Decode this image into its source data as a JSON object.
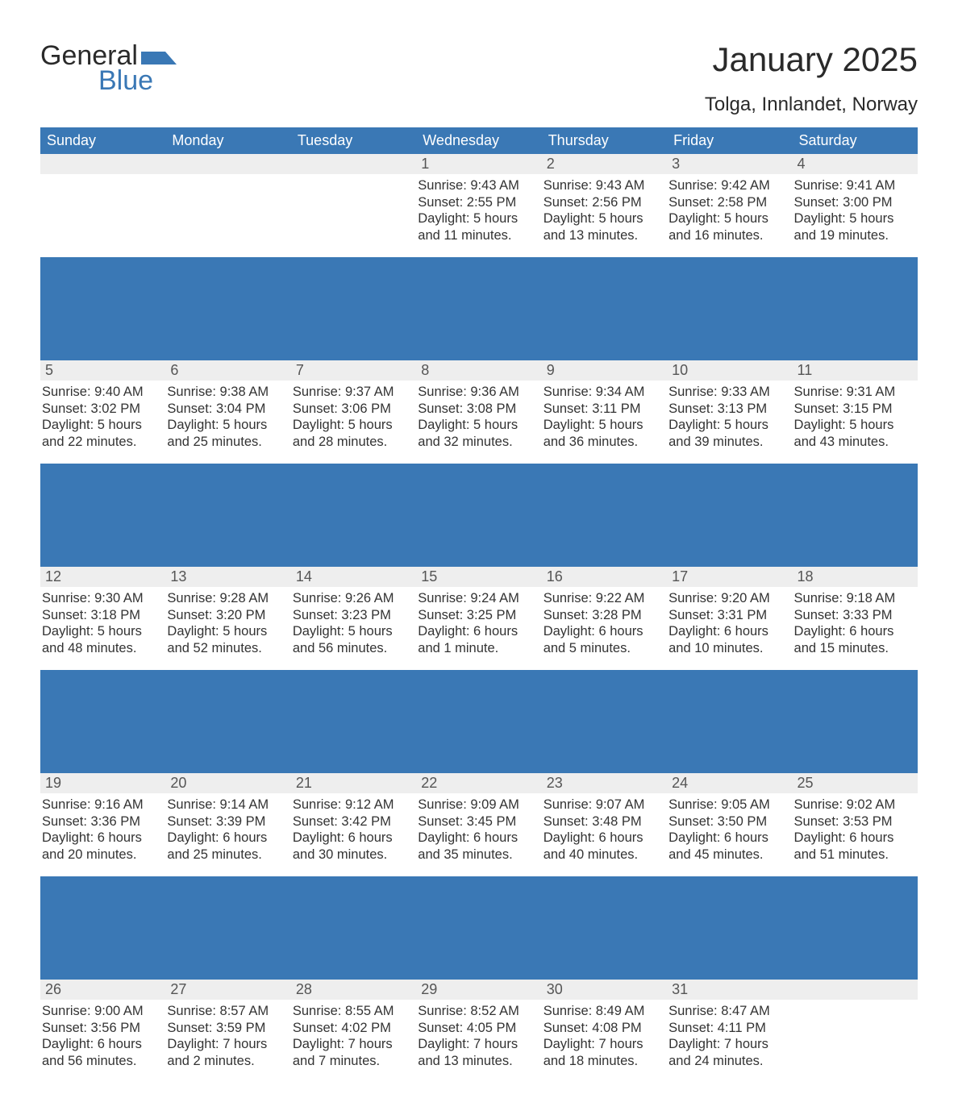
{
  "brand": {
    "word1": "General",
    "word2": "Blue"
  },
  "title": "January 2025",
  "location": "Tolga, Innlandet, Norway",
  "colors": {
    "header_bg": "#3a78b5",
    "header_fg": "#ffffff",
    "daynum_bg": "#eeeeee",
    "text": "#333333",
    "page_bg": "#ffffff",
    "logo_blue": "#3a78b5"
  },
  "day_headers": [
    "Sunday",
    "Monday",
    "Tuesday",
    "Wednesday",
    "Thursday",
    "Friday",
    "Saturday"
  ],
  "weeks": [
    [
      {
        "n": "",
        "sr": "",
        "ss": "",
        "dl1": "",
        "dl2": ""
      },
      {
        "n": "",
        "sr": "",
        "ss": "",
        "dl1": "",
        "dl2": ""
      },
      {
        "n": "",
        "sr": "",
        "ss": "",
        "dl1": "",
        "dl2": ""
      },
      {
        "n": "1",
        "sr": "Sunrise: 9:43 AM",
        "ss": "Sunset: 2:55 PM",
        "dl1": "Daylight: 5 hours",
        "dl2": "and 11 minutes."
      },
      {
        "n": "2",
        "sr": "Sunrise: 9:43 AM",
        "ss": "Sunset: 2:56 PM",
        "dl1": "Daylight: 5 hours",
        "dl2": "and 13 minutes."
      },
      {
        "n": "3",
        "sr": "Sunrise: 9:42 AM",
        "ss": "Sunset: 2:58 PM",
        "dl1": "Daylight: 5 hours",
        "dl2": "and 16 minutes."
      },
      {
        "n": "4",
        "sr": "Sunrise: 9:41 AM",
        "ss": "Sunset: 3:00 PM",
        "dl1": "Daylight: 5 hours",
        "dl2": "and 19 minutes."
      }
    ],
    [
      {
        "n": "5",
        "sr": "Sunrise: 9:40 AM",
        "ss": "Sunset: 3:02 PM",
        "dl1": "Daylight: 5 hours",
        "dl2": "and 22 minutes."
      },
      {
        "n": "6",
        "sr": "Sunrise: 9:38 AM",
        "ss": "Sunset: 3:04 PM",
        "dl1": "Daylight: 5 hours",
        "dl2": "and 25 minutes."
      },
      {
        "n": "7",
        "sr": "Sunrise: 9:37 AM",
        "ss": "Sunset: 3:06 PM",
        "dl1": "Daylight: 5 hours",
        "dl2": "and 28 minutes."
      },
      {
        "n": "8",
        "sr": "Sunrise: 9:36 AM",
        "ss": "Sunset: 3:08 PM",
        "dl1": "Daylight: 5 hours",
        "dl2": "and 32 minutes."
      },
      {
        "n": "9",
        "sr": "Sunrise: 9:34 AM",
        "ss": "Sunset: 3:11 PM",
        "dl1": "Daylight: 5 hours",
        "dl2": "and 36 minutes."
      },
      {
        "n": "10",
        "sr": "Sunrise: 9:33 AM",
        "ss": "Sunset: 3:13 PM",
        "dl1": "Daylight: 5 hours",
        "dl2": "and 39 minutes."
      },
      {
        "n": "11",
        "sr": "Sunrise: 9:31 AM",
        "ss": "Sunset: 3:15 PM",
        "dl1": "Daylight: 5 hours",
        "dl2": "and 43 minutes."
      }
    ],
    [
      {
        "n": "12",
        "sr": "Sunrise: 9:30 AM",
        "ss": "Sunset: 3:18 PM",
        "dl1": "Daylight: 5 hours",
        "dl2": "and 48 minutes."
      },
      {
        "n": "13",
        "sr": "Sunrise: 9:28 AM",
        "ss": "Sunset: 3:20 PM",
        "dl1": "Daylight: 5 hours",
        "dl2": "and 52 minutes."
      },
      {
        "n": "14",
        "sr": "Sunrise: 9:26 AM",
        "ss": "Sunset: 3:23 PM",
        "dl1": "Daylight: 5 hours",
        "dl2": "and 56 minutes."
      },
      {
        "n": "15",
        "sr": "Sunrise: 9:24 AM",
        "ss": "Sunset: 3:25 PM",
        "dl1": "Daylight: 6 hours",
        "dl2": "and 1 minute."
      },
      {
        "n": "16",
        "sr": "Sunrise: 9:22 AM",
        "ss": "Sunset: 3:28 PM",
        "dl1": "Daylight: 6 hours",
        "dl2": "and 5 minutes."
      },
      {
        "n": "17",
        "sr": "Sunrise: 9:20 AM",
        "ss": "Sunset: 3:31 PM",
        "dl1": "Daylight: 6 hours",
        "dl2": "and 10 minutes."
      },
      {
        "n": "18",
        "sr": "Sunrise: 9:18 AM",
        "ss": "Sunset: 3:33 PM",
        "dl1": "Daylight: 6 hours",
        "dl2": "and 15 minutes."
      }
    ],
    [
      {
        "n": "19",
        "sr": "Sunrise: 9:16 AM",
        "ss": "Sunset: 3:36 PM",
        "dl1": "Daylight: 6 hours",
        "dl2": "and 20 minutes."
      },
      {
        "n": "20",
        "sr": "Sunrise: 9:14 AM",
        "ss": "Sunset: 3:39 PM",
        "dl1": "Daylight: 6 hours",
        "dl2": "and 25 minutes."
      },
      {
        "n": "21",
        "sr": "Sunrise: 9:12 AM",
        "ss": "Sunset: 3:42 PM",
        "dl1": "Daylight: 6 hours",
        "dl2": "and 30 minutes."
      },
      {
        "n": "22",
        "sr": "Sunrise: 9:09 AM",
        "ss": "Sunset: 3:45 PM",
        "dl1": "Daylight: 6 hours",
        "dl2": "and 35 minutes."
      },
      {
        "n": "23",
        "sr": "Sunrise: 9:07 AM",
        "ss": "Sunset: 3:48 PM",
        "dl1": "Daylight: 6 hours",
        "dl2": "and 40 minutes."
      },
      {
        "n": "24",
        "sr": "Sunrise: 9:05 AM",
        "ss": "Sunset: 3:50 PM",
        "dl1": "Daylight: 6 hours",
        "dl2": "and 45 minutes."
      },
      {
        "n": "25",
        "sr": "Sunrise: 9:02 AM",
        "ss": "Sunset: 3:53 PM",
        "dl1": "Daylight: 6 hours",
        "dl2": "and 51 minutes."
      }
    ],
    [
      {
        "n": "26",
        "sr": "Sunrise: 9:00 AM",
        "ss": "Sunset: 3:56 PM",
        "dl1": "Daylight: 6 hours",
        "dl2": "and 56 minutes."
      },
      {
        "n": "27",
        "sr": "Sunrise: 8:57 AM",
        "ss": "Sunset: 3:59 PM",
        "dl1": "Daylight: 7 hours",
        "dl2": "and 2 minutes."
      },
      {
        "n": "28",
        "sr": "Sunrise: 8:55 AM",
        "ss": "Sunset: 4:02 PM",
        "dl1": "Daylight: 7 hours",
        "dl2": "and 7 minutes."
      },
      {
        "n": "29",
        "sr": "Sunrise: 8:52 AM",
        "ss": "Sunset: 4:05 PM",
        "dl1": "Daylight: 7 hours",
        "dl2": "and 13 minutes."
      },
      {
        "n": "30",
        "sr": "Sunrise: 8:49 AM",
        "ss": "Sunset: 4:08 PM",
        "dl1": "Daylight: 7 hours",
        "dl2": "and 18 minutes."
      },
      {
        "n": "31",
        "sr": "Sunrise: 8:47 AM",
        "ss": "Sunset: 4:11 PM",
        "dl1": "Daylight: 7 hours",
        "dl2": "and 24 minutes."
      },
      {
        "n": "",
        "sr": "",
        "ss": "",
        "dl1": "",
        "dl2": ""
      }
    ]
  ]
}
